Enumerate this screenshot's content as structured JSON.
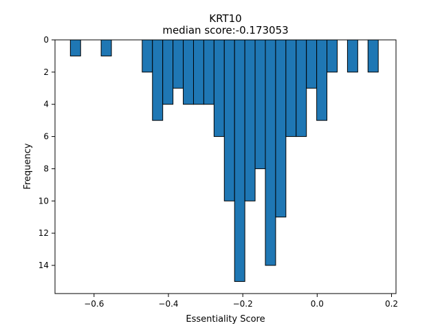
{
  "chart_data": {
    "type": "bar",
    "title": "KRT10",
    "subtitle": "median score:-0.173053",
    "xlabel": "Essentiality Score",
    "ylabel": "Frequency",
    "xlim": [
      -0.705,
      0.212
    ],
    "ylim": [
      0,
      15.75
    ],
    "y_inverted": true,
    "bin_width": 0.0276,
    "x_ticks": [
      -0.6,
      -0.4,
      -0.2,
      0.0,
      0.2
    ],
    "x_tick_labels": [
      "−0.6",
      "−0.4",
      "−0.2",
      "0.0",
      "0.2"
    ],
    "y_ticks": [
      0,
      2,
      4,
      6,
      8,
      10,
      12,
      14
    ],
    "y_tick_labels": [
      "0",
      "2",
      "4",
      "6",
      "8",
      "10",
      "12",
      "14"
    ],
    "bar_color": "#1f77b4",
    "edge_color": "#000000",
    "bins": [
      {
        "x0": -0.6637,
        "count": 1
      },
      {
        "x0": -0.5809,
        "count": 1
      },
      {
        "x0": -0.4705,
        "count": 2
      },
      {
        "x0": -0.4429,
        "count": 5
      },
      {
        "x0": -0.4153,
        "count": 4
      },
      {
        "x0": -0.3877,
        "count": 3
      },
      {
        "x0": -0.3601,
        "count": 4
      },
      {
        "x0": -0.3325,
        "count": 4
      },
      {
        "x0": -0.3049,
        "count": 4
      },
      {
        "x0": -0.2773,
        "count": 6
      },
      {
        "x0": -0.2497,
        "count": 10
      },
      {
        "x0": -0.2221,
        "count": 15
      },
      {
        "x0": -0.1945,
        "count": 10
      },
      {
        "x0": -0.1669,
        "count": 8
      },
      {
        "x0": -0.1393,
        "count": 14
      },
      {
        "x0": -0.1117,
        "count": 11
      },
      {
        "x0": -0.0841,
        "count": 6
      },
      {
        "x0": -0.0565,
        "count": 6
      },
      {
        "x0": -0.0289,
        "count": 3
      },
      {
        "x0": -0.0013,
        "count": 5
      },
      {
        "x0": 0.0263,
        "count": 2
      },
      {
        "x0": 0.0815,
        "count": 2
      },
      {
        "x0": 0.1367,
        "count": 2
      }
    ]
  }
}
